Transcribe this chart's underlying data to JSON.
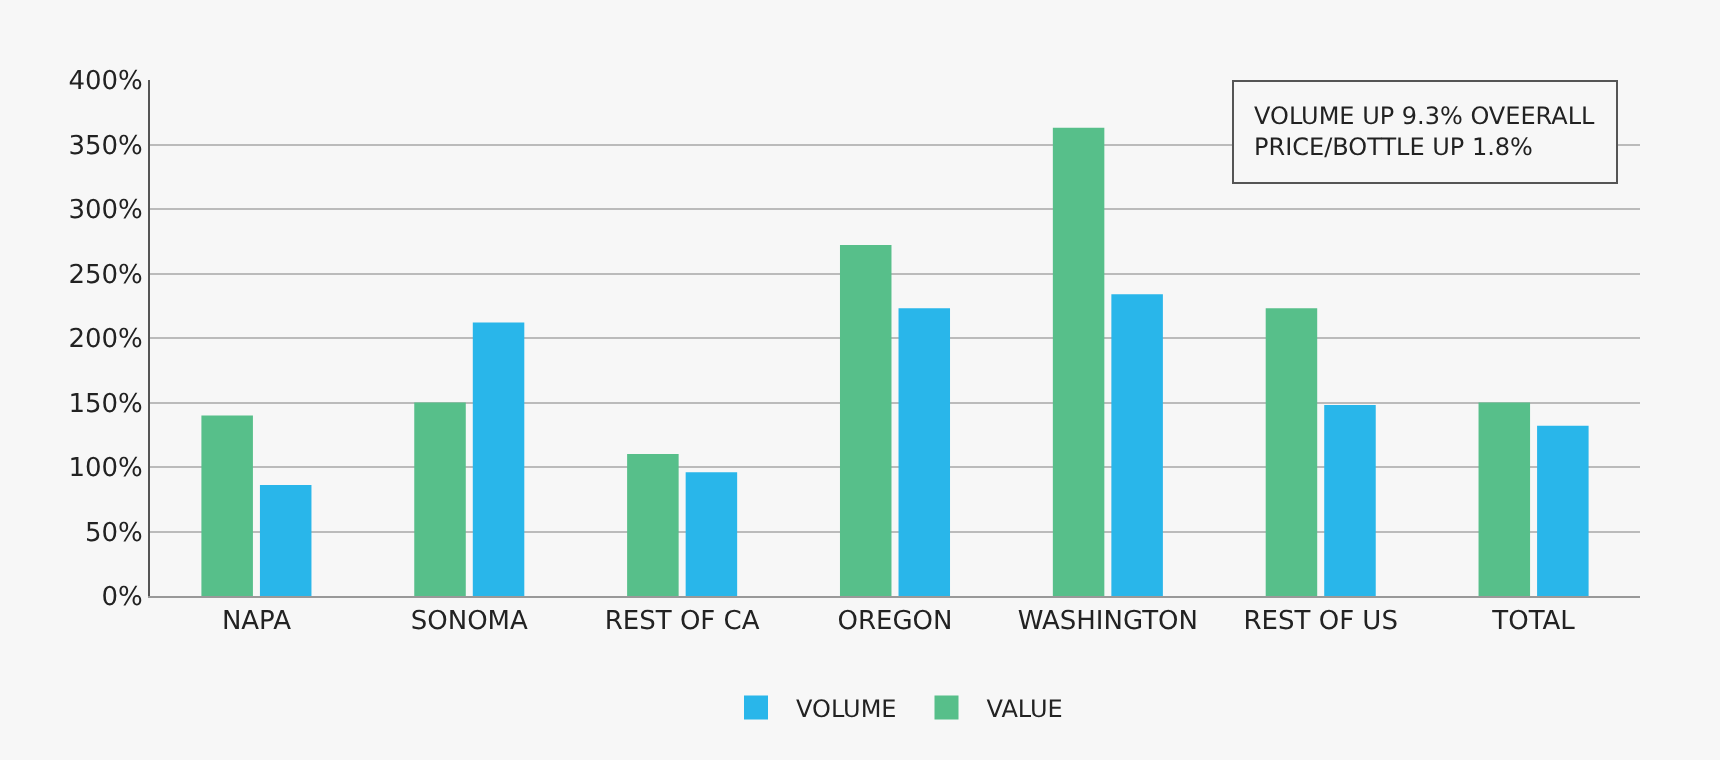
{
  "chart_data": {
    "type": "bar",
    "categories": [
      "NAPA",
      "SONOMA",
      "REST OF CA",
      "OREGON",
      "WASHINGTON",
      "REST OF US",
      "TOTAL"
    ],
    "series": [
      {
        "name": "VALUE",
        "color": "#57bf8a",
        "values": [
          140,
          150,
          110,
          272,
          363,
          223,
          150
        ]
      },
      {
        "name": "VOLUME",
        "color": "#29b6ea",
        "values": [
          86,
          212,
          96,
          223,
          234,
          148,
          132
        ]
      }
    ],
    "ylim": [
      0,
      400
    ],
    "yticks": [
      {
        "value": 0,
        "label": "0%"
      },
      {
        "value": 50,
        "label": "50%"
      },
      {
        "value": 100,
        "label": "100%"
      },
      {
        "value": 150,
        "label": "150%"
      },
      {
        "value": 200,
        "label": "200%"
      },
      {
        "value": 250,
        "label": "250%"
      },
      {
        "value": 300,
        "label": "300%"
      },
      {
        "value": 350,
        "label": "350%"
      },
      {
        "value": 400,
        "label": "400%"
      }
    ],
    "grid": "y",
    "legend": "bottom",
    "annotations": [
      "VOLUME UP 9.3% OVEERALL\nPRICE/BOTTLE UP 1.8%"
    ]
  }
}
